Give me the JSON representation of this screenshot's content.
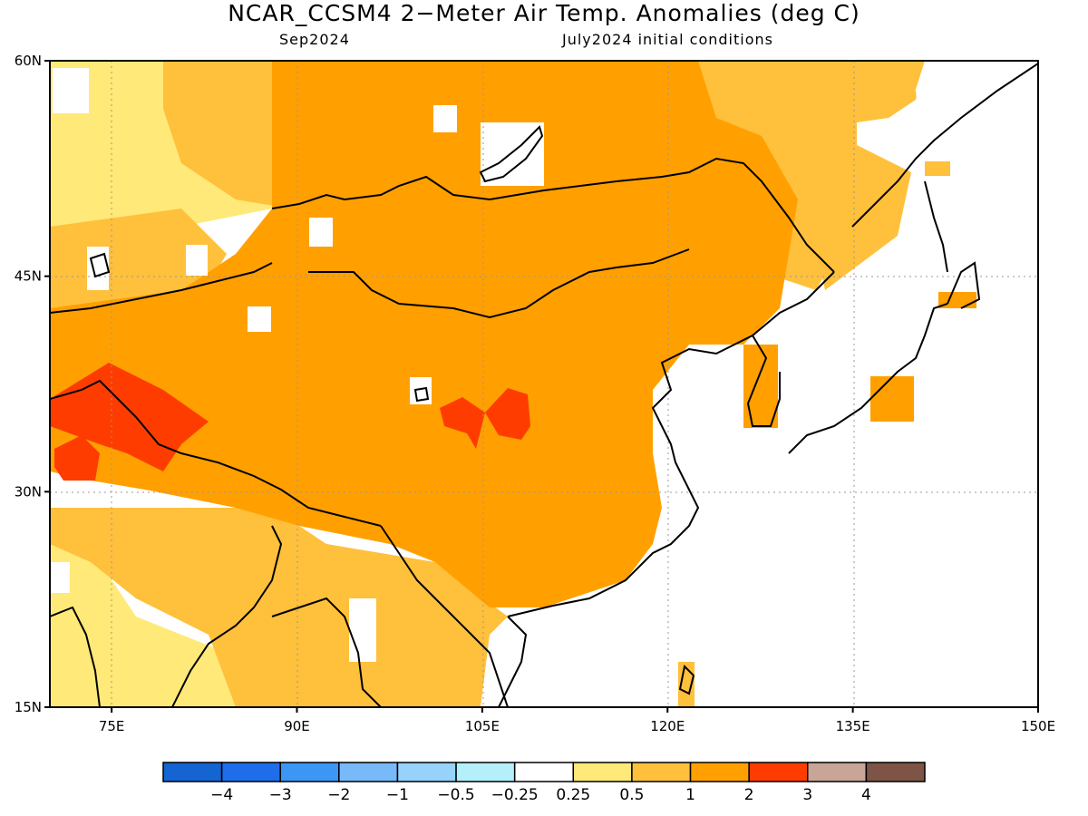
{
  "title": "NCAR_CCSM4 2−Meter Air Temp. Anomalies (deg C)",
  "subtitle_left": "Sep2024",
  "subtitle_right": "July2024 initial conditions",
  "map": {
    "lon_range": [
      70,
      150
    ],
    "lat_range": [
      15,
      60
    ],
    "lat_ticks": [
      {
        "value": 60,
        "label": "60N"
      },
      {
        "value": 45,
        "label": "45N"
      },
      {
        "value": 30,
        "label": "30N"
      },
      {
        "value": 15,
        "label": "15N"
      }
    ],
    "lon_ticks": [
      {
        "value": 75,
        "label": "75E"
      },
      {
        "value": 90,
        "label": "90E"
      },
      {
        "value": 105,
        "label": "105E"
      },
      {
        "value": 120,
        "label": "120E"
      },
      {
        "value": 135,
        "label": "135E"
      },
      {
        "value": 150,
        "label": "150E"
      }
    ],
    "dominant_anomaly": "1 to 2 over interior Asia, 2 to 3 over western Himalaya and central China"
  },
  "colorbar": {
    "colors": [
      "#1464d2",
      "#1e6eeb",
      "#3c96f5",
      "#78b9fa",
      "#96d2fa",
      "#b4f0fa",
      "#ffffff",
      "#ffe978",
      "#ffc03c",
      "#ffa000",
      "#ff3c00",
      "#c8a596",
      "#7d5446"
    ],
    "labels": [
      "−4",
      "−3",
      "−2",
      "−1",
      "−0.5",
      "−0.25",
      "0.25",
      "0.5",
      "1",
      "2",
      "3",
      "4"
    ]
  },
  "fill_colors": {
    "light": "#ffe978",
    "mid": "#ffc03c",
    "main": "#ffa000",
    "hot": "#ff3c00",
    "coast": "#000000"
  }
}
